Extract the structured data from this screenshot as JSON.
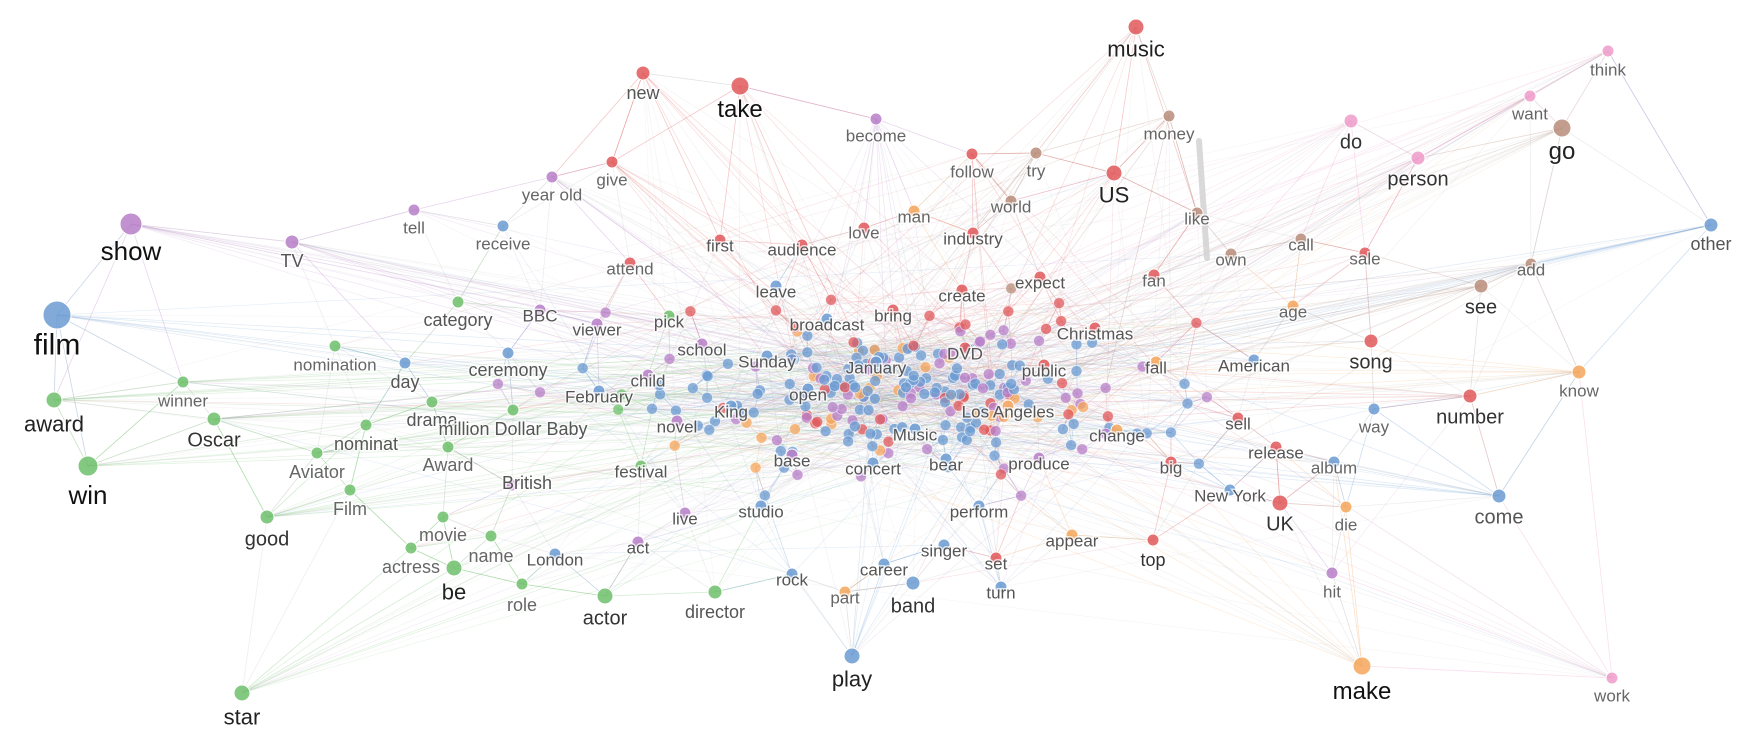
{
  "graph": {
    "groups": {
      "blue": "#6b9bd2",
      "red": "#e0585b",
      "green": "#6fc06b",
      "purple": "#b77fc8",
      "orange": "#f5a65b",
      "brown": "#b88d7a",
      "pink": "#ef9bc9"
    },
    "nodes": [
      {
        "label": "film",
        "group": "blue"
      },
      {
        "label": "show",
        "group": "purple"
      },
      {
        "label": "award",
        "group": "green"
      },
      {
        "label": "win",
        "group": "green"
      },
      {
        "label": "Oscar",
        "group": "green"
      },
      {
        "label": "winner",
        "group": "green"
      },
      {
        "label": "good",
        "group": "green"
      },
      {
        "label": "star",
        "group": "green"
      },
      {
        "label": "be",
        "group": "green"
      },
      {
        "label": "actor",
        "group": "green"
      },
      {
        "label": "director",
        "group": "green"
      },
      {
        "label": "role",
        "group": "green"
      },
      {
        "label": "actress",
        "group": "green"
      },
      {
        "label": "movie",
        "group": "green"
      },
      {
        "label": "name",
        "group": "green"
      },
      {
        "label": "Film",
        "group": "green"
      },
      {
        "label": "Aviator",
        "group": "green"
      },
      {
        "label": "nominat",
        "group": "green"
      },
      {
        "label": "drama",
        "group": "green"
      },
      {
        "label": "million Dollar Baby",
        "group": "green"
      },
      {
        "label": "Award",
        "group": "green"
      },
      {
        "label": "British",
        "group": "purple"
      },
      {
        "label": "nomination",
        "group": "green"
      },
      {
        "label": "category",
        "group": "green"
      },
      {
        "label": "day",
        "group": "blue"
      },
      {
        "label": "ceremony",
        "group": "blue"
      },
      {
        "label": "TV",
        "group": "purple"
      },
      {
        "label": "tell",
        "group": "purple"
      },
      {
        "label": "receive",
        "group": "blue"
      },
      {
        "label": "year old",
        "group": "purple"
      },
      {
        "label": "give",
        "group": "red"
      },
      {
        "label": "new",
        "group": "red"
      },
      {
        "label": "take",
        "group": "red"
      },
      {
        "label": "music",
        "group": "red"
      },
      {
        "label": "become",
        "group": "purple"
      },
      {
        "label": "money",
        "group": "brown"
      },
      {
        "label": "follow",
        "group": "red"
      },
      {
        "label": "try",
        "group": "brown"
      },
      {
        "label": "US",
        "group": "red"
      },
      {
        "label": "world",
        "group": "brown"
      },
      {
        "label": "man",
        "group": "orange"
      },
      {
        "label": "love",
        "group": "red"
      },
      {
        "label": "industry",
        "group": "red"
      },
      {
        "label": "like",
        "group": "brown"
      },
      {
        "label": "first",
        "group": "red"
      },
      {
        "label": "audience",
        "group": "red"
      },
      {
        "label": "attend",
        "group": "red"
      },
      {
        "label": "own",
        "group": "brown"
      },
      {
        "label": "call",
        "group": "brown"
      },
      {
        "label": "sale",
        "group": "red"
      },
      {
        "label": "add",
        "group": "brown"
      },
      {
        "label": "expect",
        "group": "red"
      },
      {
        "label": "fan",
        "group": "red"
      },
      {
        "label": "leave",
        "group": "blue"
      },
      {
        "label": "create",
        "group": "red"
      },
      {
        "label": "bring",
        "group": "red"
      },
      {
        "label": "BBC",
        "group": "purple"
      },
      {
        "label": "viewer",
        "group": "purple"
      },
      {
        "label": "pick",
        "group": "green"
      },
      {
        "label": "broadcast",
        "group": "blue"
      },
      {
        "label": "Christmas",
        "group": "red"
      },
      {
        "label": "age",
        "group": "orange"
      },
      {
        "label": "see",
        "group": "brown"
      },
      {
        "label": "school",
        "group": "purple"
      },
      {
        "label": "Sunday",
        "group": "blue"
      },
      {
        "label": "DVD",
        "group": "red"
      },
      {
        "label": "child",
        "group": "purple"
      },
      {
        "label": "January",
        "group": "blue"
      },
      {
        "label": "public",
        "group": "red"
      },
      {
        "label": "fall",
        "group": "orange"
      },
      {
        "label": "American",
        "group": "blue"
      },
      {
        "label": "song",
        "group": "red"
      },
      {
        "label": "February",
        "group": "blue"
      },
      {
        "label": "open",
        "group": "blue"
      },
      {
        "label": "King",
        "group": "blue"
      },
      {
        "label": "novel",
        "group": "purple"
      },
      {
        "label": "Los Angeles",
        "group": "orange"
      },
      {
        "label": "Music",
        "group": "blue"
      },
      {
        "label": "change",
        "group": "orange"
      },
      {
        "label": "sell",
        "group": "red"
      },
      {
        "label": "number",
        "group": "red"
      },
      {
        "label": "know",
        "group": "orange"
      },
      {
        "label": "way",
        "group": "blue"
      },
      {
        "label": "base",
        "group": "purple"
      },
      {
        "label": "concert",
        "group": "blue"
      },
      {
        "label": "bear",
        "group": "blue"
      },
      {
        "label": "produce",
        "group": "purple"
      },
      {
        "label": "big",
        "group": "red"
      },
      {
        "label": "release",
        "group": "red"
      },
      {
        "label": "album",
        "group": "blue"
      },
      {
        "label": "festival",
        "group": "green"
      },
      {
        "label": "studio",
        "group": "blue"
      },
      {
        "label": "live",
        "group": "purple"
      },
      {
        "label": "perform",
        "group": "blue"
      },
      {
        "label": "New York",
        "group": "blue"
      },
      {
        "label": "UK",
        "group": "red"
      },
      {
        "label": "die",
        "group": "orange"
      },
      {
        "label": "come",
        "group": "blue"
      },
      {
        "label": "act",
        "group": "purple"
      },
      {
        "label": "London",
        "group": "blue"
      },
      {
        "label": "singer",
        "group": "blue"
      },
      {
        "label": "appear",
        "group": "orange"
      },
      {
        "label": "top",
        "group": "red"
      },
      {
        "label": "set",
        "group": "red"
      },
      {
        "label": "career",
        "group": "blue"
      },
      {
        "label": "turn",
        "group": "blue"
      },
      {
        "label": "rock",
        "group": "blue"
      },
      {
        "label": "part",
        "group": "orange"
      },
      {
        "label": "band",
        "group": "blue"
      },
      {
        "label": "hit",
        "group": "purple"
      },
      {
        "label": "play",
        "group": "blue"
      },
      {
        "label": "make",
        "group": "orange"
      },
      {
        "label": "work",
        "group": "pink"
      },
      {
        "label": "think",
        "group": "pink"
      },
      {
        "label": "want",
        "group": "pink"
      },
      {
        "label": "do",
        "group": "pink"
      },
      {
        "label": "go",
        "group": "brown"
      },
      {
        "label": "person",
        "group": "pink"
      },
      {
        "label": "other",
        "group": "blue"
      }
    ]
  }
}
